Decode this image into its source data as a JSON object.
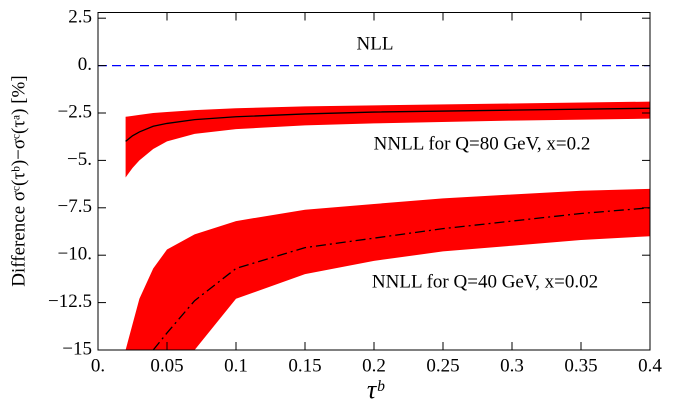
{
  "chart_data": {
    "type": "line",
    "y_label": "Difference  σᶜ(τᵇ)−σᶜ(τᵃ)  [%]",
    "x_label": "τᵇ",
    "xlim": [
      0,
      0.4
    ],
    "ylim": [
      -15,
      2.8
    ],
    "xticks": [
      {
        "value": 0,
        "label": "0."
      },
      0.05,
      0.1,
      0.15,
      0.2,
      0.25,
      0.3,
      0.35,
      0.4
    ],
    "yticks": [
      2.5,
      {
        "value": 0,
        "label": "0."
      },
      {
        "value": -2.5,
        "label": "−2.5"
      },
      {
        "value": -5,
        "label": "−5."
      },
      {
        "value": -7.5,
        "label": "−7.5"
      },
      {
        "value": -10,
        "label": "−10."
      },
      {
        "value": -12.5,
        "label": "−12.5"
      },
      {
        "value": -15,
        "label": "−15"
      }
    ],
    "bands": [
      {
        "color": "#ff0000",
        "x": [
          0.02,
          0.025,
          0.03,
          0.04,
          0.05,
          0.07,
          0.1,
          0.15,
          0.2,
          0.3,
          0.4
        ],
        "upper": [
          -2.7,
          -2.65,
          -2.6,
          -2.5,
          -2.45,
          -2.35,
          -2.25,
          -2.15,
          -2.1,
          -2.0,
          -1.9
        ],
        "lower": [
          -5.9,
          -5.4,
          -5.0,
          -4.4,
          -4.0,
          -3.6,
          -3.35,
          -3.15,
          -3.05,
          -2.9,
          -2.8
        ]
      },
      {
        "color": "#ff0000",
        "x": [
          0.02,
          0.03,
          0.04,
          0.05,
          0.07,
          0.1,
          0.15,
          0.2,
          0.25,
          0.3,
          0.35,
          0.4
        ],
        "upper": [
          -15,
          -12.3,
          -10.7,
          -9.7,
          -8.9,
          -8.2,
          -7.6,
          -7.3,
          -7.0,
          -6.8,
          -6.6,
          -6.5
        ],
        "lower": [
          -15,
          -15,
          -15,
          -15,
          -15,
          -12.3,
          -11,
          -10.3,
          -9.8,
          -9.5,
          -9.2,
          -9.0
        ]
      }
    ],
    "series": [
      {
        "color": "#0000ff",
        "dash": "dashed",
        "x": [
          0,
          0.4
        ],
        "values": [
          0,
          0
        ]
      },
      {
        "color": "#000000",
        "dash": "solid",
        "x": [
          0.02,
          0.025,
          0.03,
          0.04,
          0.05,
          0.07,
          0.1,
          0.15,
          0.2,
          0.3,
          0.4
        ],
        "values": [
          -4.0,
          -3.7,
          -3.5,
          -3.2,
          -3.05,
          -2.85,
          -2.7,
          -2.55,
          -2.45,
          -2.35,
          -2.25
        ]
      },
      {
        "color": "#000000",
        "dash": "dashdot",
        "x": [
          0.02,
          0.03,
          0.04,
          0.05,
          0.07,
          0.1,
          0.15,
          0.2,
          0.25,
          0.3,
          0.35,
          0.4
        ],
        "values": [
          null,
          null,
          -15,
          -14.1,
          -12.4,
          -10.7,
          -9.6,
          -9.1,
          -8.6,
          -8.2,
          -7.8,
          -7.5
        ]
      }
    ],
    "annotations": [
      "NLL",
      "NNLL for Q=80 GeV, x=0.2",
      "NNLL for Q=40 GeV, x=0.02"
    ]
  }
}
